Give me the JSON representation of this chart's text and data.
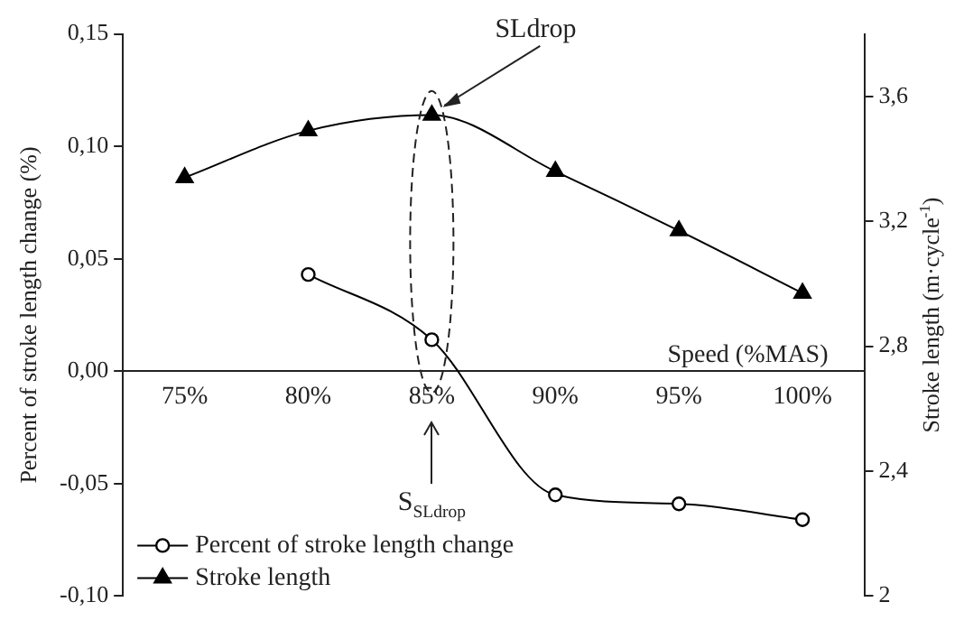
{
  "chart_data": {
    "type": "line",
    "xlabel": "Speed (%MAS)",
    "ylabel": "Percent of stroke length change (%)",
    "y2label": "Stroke length (m·cycle$^{-1}$)",
    "categories": [
      "75%",
      "80%",
      "85%",
      "90%",
      "95%",
      "100%"
    ],
    "series": [
      {
        "name": "Percent of stroke length change",
        "color": "#000000",
        "marker": "circle",
        "values": [
          null,
          0.043,
          0.014,
          -0.055,
          -0.059,
          -0.066
        ]
      },
      {
        "name": "Stroke length",
        "color": "#000000",
        "marker": "triangle",
        "axis": "y2",
        "values": [
          3.34,
          3.49,
          3.54,
          3.36,
          3.17,
          2.97
        ]
      }
    ],
    "ylim": [
      -0.1,
      0.15
    ],
    "yticks": [
      {
        "value": -0.1,
        "label": "-0,10"
      },
      {
        "value": -0.05,
        "label": "-0,05"
      },
      {
        "value": 0,
        "label": "0,00"
      },
      {
        "value": 0.05,
        "label": "0,05"
      },
      {
        "value": 0.1,
        "label": "0,10"
      },
      {
        "value": 0.15,
        "label": "0,15"
      }
    ],
    "y2lim": [
      2,
      3.8
    ],
    "y2ticks": [
      2,
      {
        "value": 2.4,
        "label": "2,4"
      },
      {
        "value": 2.8,
        "label": "2,8"
      },
      {
        "value": 3.2,
        "label": "3,2"
      },
      {
        "value": 3.6,
        "label": "3,6"
      }
    ],
    "annotations": [
      {
        "text": "SLdrop",
        "x": "85%",
        "y": 0.115
      },
      {
        "text": "S$_{SLdrop}$",
        "x": "85%"
      }
    ],
    "grid": false,
    "legend": "bottom left"
  }
}
